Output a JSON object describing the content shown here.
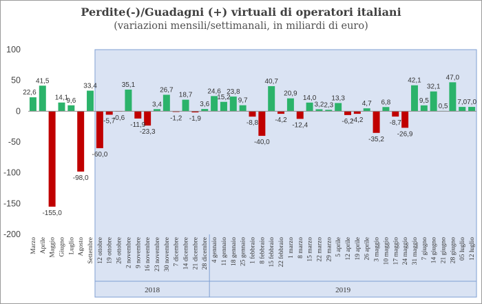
{
  "chart_data": {
    "type": "bar",
    "title": "Perdite(-)/Guadagni (+) virtuali di operatori italiani",
    "subtitle": "(variazioni mensili/settimanali, in miliardi di euro)",
    "ylim": [
      -200,
      100
    ],
    "yticks": [
      100,
      50,
      0,
      -50,
      -100,
      -150,
      -200
    ],
    "grid": false,
    "colors": {
      "positive": "#2bb36a",
      "negative": "#c00000",
      "shade": "#dae3f3",
      "shade_border": "#7f9fd3"
    },
    "categories": [
      "Marzo",
      "Aprile",
      "Maggio",
      "Giugno",
      "Luglio",
      "Agosto",
      "Settembre",
      "12 ottobre",
      "19 ottobre",
      "26 ottobre",
      "2 novembre",
      "9 novembre",
      "16 novembre",
      "23 novembre",
      "30 novembre",
      "7 dicembre",
      "14 dicembre",
      "21 dicembre",
      "28 dicembre",
      "4 gennaio",
      "11 gennaio",
      "18 gennaio",
      "25 gennaio",
      "1 febbraio",
      "8 febbraio",
      "15 febbraio",
      "22 febbraio",
      "1 marzo",
      "8 marzo",
      "15 marzo",
      "22 marzo",
      "29 marzo",
      "5 aprile",
      "12 aprile",
      "19 aprile",
      "26 aprile",
      "3 maggio",
      "10 maggio",
      "17 maggio",
      "24 maggio",
      "31 maggio",
      "7 giugno",
      "14 giugno",
      "21 giugno",
      "28 giugno",
      "05 luglio",
      "12 luglio"
    ],
    "values": [
      22.6,
      41.5,
      -155.0,
      14.1,
      9.6,
      -98.0,
      33.4,
      -60.0,
      -5.7,
      -0.6,
      35.1,
      -11.9,
      -23.3,
      3.4,
      26.7,
      -1.2,
      18.7,
      -1.9,
      3.6,
      24.6,
      15.2,
      23.8,
      9.7,
      -8.8,
      -40.0,
      40.7,
      -4.2,
      20.9,
      -12.4,
      14.0,
      3.2,
      2.3,
      13.3,
      -6.2,
      -4.2,
      4.7,
      -35.2,
      6.8,
      -8.7,
      -26.9,
      42.1,
      9.5,
      32.1,
      0.5,
      47.0,
      7.0,
      7.0
    ],
    "data_labels": [
      "22,6",
      "41,5",
      "-155,0",
      "14,1",
      "9,6",
      "-98,0",
      "33,4",
      "-60,0",
      "-5,7",
      "-0,6",
      "35,1",
      "-11,9",
      "-23,3",
      "3,4",
      "26,7",
      "-1,2",
      "18,7",
      "-1,9",
      "3,6",
      "24,6",
      "15,2",
      "23,8",
      "9,7",
      "-8,8",
      "-40,0",
      "40,7",
      "-4,2",
      "20,9",
      "-12,4",
      "14,0",
      "3,2",
      "2,3",
      "13,3",
      "-6,2",
      "-4,2",
      "4,7",
      "-35,2",
      "6,8",
      "-8,7",
      "-26,9",
      "42,1",
      "9,5",
      "32,1",
      "0,5",
      "47,0",
      "7,0",
      "7,0"
    ],
    "groups": [
      {
        "label": "2018",
        "start": 7,
        "end": 18
      },
      {
        "label": "2019",
        "start": 19,
        "end": 46
      }
    ]
  }
}
